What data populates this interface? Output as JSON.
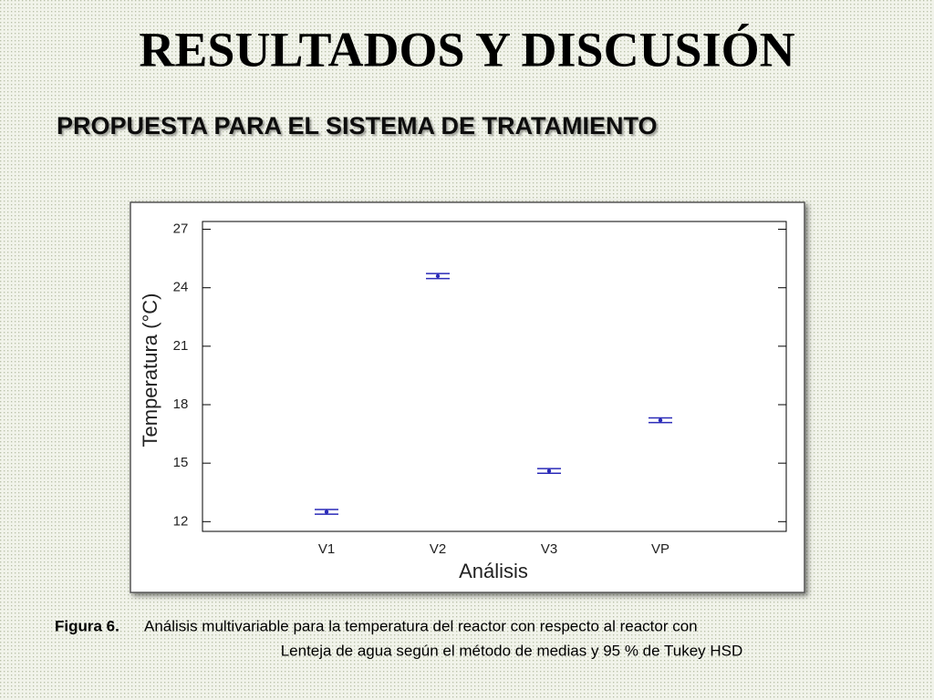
{
  "slide": {
    "title": "RESULTADOS Y DISCUSIÓN",
    "subtitle": "PROPUESTA PARA EL SISTEMA DE TRATAMIENTO",
    "caption": {
      "label": "Figura 6.",
      "lines": [
        "Análisis multivariable para la temperatura del reactor con respecto al reactor con",
        "Lenteja de agua según el método de medias y 95 % de Tukey HSD"
      ]
    }
  },
  "chart_data": {
    "type": "errorbar",
    "x_label": "Análisis",
    "y_label": "Temperatura (°C)",
    "categories": [
      "V1",
      "V2",
      "V3",
      "VP"
    ],
    "values": [
      12.5,
      24.6,
      14.6,
      17.2
    ],
    "errors": [
      0.12,
      0.13,
      0.12,
      0.12
    ],
    "color": "#2a2ab8",
    "ylim": [
      11.5,
      27.4
    ],
    "yticks": [
      12,
      15,
      18,
      21,
      24,
      27
    ]
  }
}
